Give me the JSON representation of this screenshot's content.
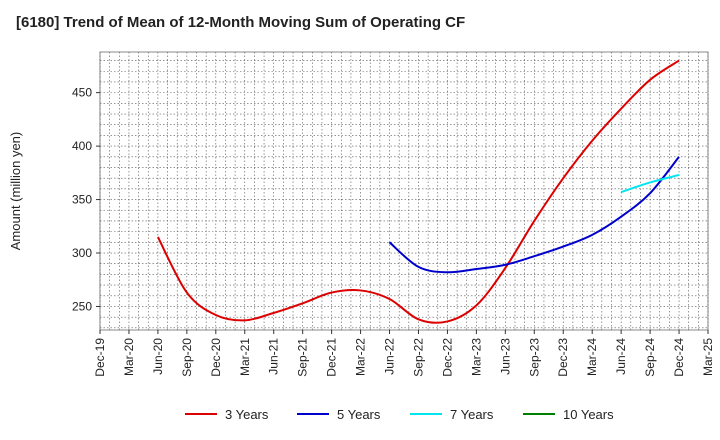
{
  "chart_data": {
    "type": "line",
    "title": "[6180]  Trend of Mean of 12-Month Moving Sum of Operating CF",
    "xlabel": "",
    "ylabel": "Amount (million yen)",
    "ylim": [
      228,
      488
    ],
    "yticks": [
      250,
      300,
      350,
      400,
      450
    ],
    "grid": true,
    "legend_position": "bottom",
    "categories": [
      "Dec-19",
      "Mar-20",
      "Jun-20",
      "Sep-20",
      "Dec-20",
      "Mar-21",
      "Jun-21",
      "Sep-21",
      "Dec-21",
      "Mar-22",
      "Jun-22",
      "Sep-22",
      "Dec-22",
      "Mar-23",
      "Jun-23",
      "Sep-23",
      "Dec-23",
      "Mar-24",
      "Jun-24",
      "Sep-24",
      "Dec-24",
      "Mar-25"
    ],
    "series": [
      {
        "name": "3 Years",
        "color": "#dd0000",
        "x": [
          2,
          3,
          4,
          5,
          6,
          7,
          8,
          9,
          10,
          11,
          12,
          13,
          14,
          15,
          16,
          17,
          18,
          19,
          20
        ],
        "values": [
          315,
          263,
          242,
          237,
          244,
          253,
          263,
          265,
          257,
          238,
          236,
          251,
          286,
          330,
          370,
          405,
          435,
          462,
          480
        ]
      },
      {
        "name": "5 Years",
        "color": "#0000cc",
        "x": [
          10,
          11,
          12,
          13,
          14,
          15,
          16,
          17,
          18,
          19,
          20
        ],
        "values": [
          310,
          287,
          282,
          285,
          289,
          297,
          306,
          317,
          334,
          356,
          390
        ]
      },
      {
        "name": "7 Years",
        "color": "#00e5ee",
        "x": [
          18,
          19,
          20
        ],
        "values": [
          357,
          366,
          373
        ]
      },
      {
        "name": "10 Years",
        "color": "#008000",
        "x": [],
        "values": []
      }
    ]
  }
}
